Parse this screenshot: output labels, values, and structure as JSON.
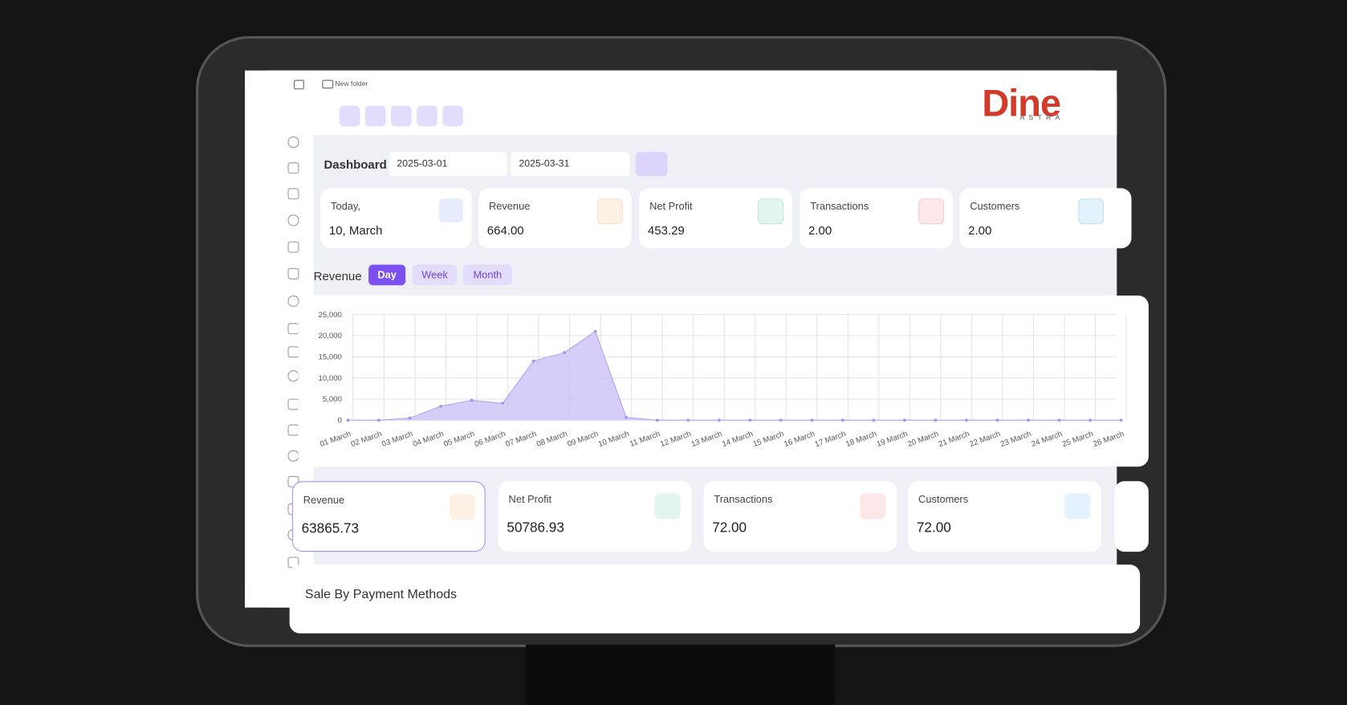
{
  "top_bar": {
    "folder": "New folder"
  },
  "logo": {
    "name": "Dine",
    "tagline": "ASTRA"
  },
  "dashboard": {
    "title": "Dashboard",
    "start_date": "2025-03-01",
    "end_date": "2025-03-31"
  },
  "today_card": {
    "label": "Today,",
    "date": "10, March"
  },
  "daily_cards": [
    {
      "label": "Revenue",
      "value": "664.00"
    },
    {
      "label": "Net Profit",
      "value": "453.29"
    },
    {
      "label": "Transactions",
      "value": "2.00"
    },
    {
      "label": "Customers",
      "value": "2.00"
    }
  ],
  "revenue_chart": {
    "type": "area",
    "title": "Revenue",
    "tabs": [
      "Day",
      "Week",
      "Month"
    ],
    "categories": [
      "01 March",
      "02 March",
      "03 March",
      "04 March",
      "05 March",
      "06 March",
      "07 March",
      "08 March",
      "09 March",
      "10 March",
      "11 March",
      "12 March",
      "13 March",
      "14 March",
      "15 March",
      "16 March",
      "17 March",
      "18 March",
      "19 March",
      "20 March",
      "21 March",
      "22 March",
      "23 March",
      "24 March",
      "25 March",
      "26 March"
    ],
    "values": [
      0,
      0,
      500,
      3300,
      4700,
      4000,
      14000,
      16000,
      21000,
      664,
      0,
      0,
      0,
      0,
      0,
      0,
      0,
      0,
      0,
      0,
      0,
      0,
      0,
      0,
      0,
      0
    ],
    "ylim": [
      0,
      25000
    ],
    "yticks": [
      0,
      {
        "value": 5000,
        "label": "5,000"
      },
      {
        "value": 10000,
        "label": "10,000"
      },
      {
        "value": 15000,
        "label": "15,000"
      },
      {
        "value": 20000,
        "label": "20,000"
      },
      {
        "value": 25000,
        "label": "25,000"
      }
    ],
    "color": "#cfc6f7",
    "grid": true
  },
  "total_cards": [
    {
      "label": "Revenue",
      "value": "63865.73"
    },
    {
      "label": "Net Profit",
      "value": "50786.93"
    },
    {
      "label": "Transactions",
      "value": "72.00"
    },
    {
      "label": "Customers",
      "value": "72.00"
    }
  ],
  "sale_by_payment": {
    "title": "Sale By Payment Methods"
  }
}
